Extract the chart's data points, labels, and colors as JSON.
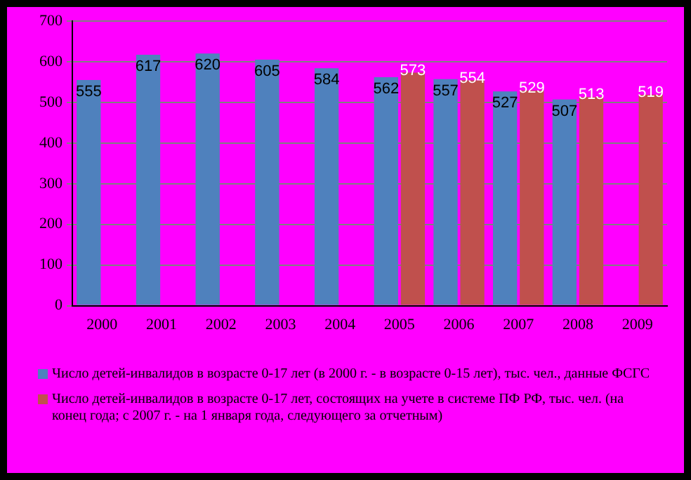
{
  "chart_data": {
    "type": "bar",
    "categories": [
      "2000",
      "2001",
      "2002",
      "2003",
      "2004",
      "2005",
      "2006",
      "2007",
      "2008",
      "2009"
    ],
    "series": [
      {
        "name": "Число детей-инвалидов в возрасте 0-17 лет (в 2000 г. - в возрасте 0-15 лет), тыс. чел., данные ФСГС",
        "color": "#4f81bd",
        "values": [
          555,
          617,
          620,
          605,
          584,
          562,
          557,
          527,
          507,
          null
        ]
      },
      {
        "name": "Число детей-инвалидов в возрасте 0-17 лет, состоящих на учете в системе ПФ РФ, тыс. чел. (на конец года; с 2007 г. - на 1 января года, следующего за отчетным)",
        "color": "#c0504d",
        "values": [
          null,
          null,
          null,
          null,
          null,
          573,
          554,
          529,
          513,
          519
        ]
      }
    ],
    "ylim": [
      0,
      700
    ],
    "yticks": [
      0,
      100,
      200,
      300,
      400,
      500,
      600,
      700
    ],
    "grid": "y",
    "legend": "bottom",
    "data_labels": true
  }
}
